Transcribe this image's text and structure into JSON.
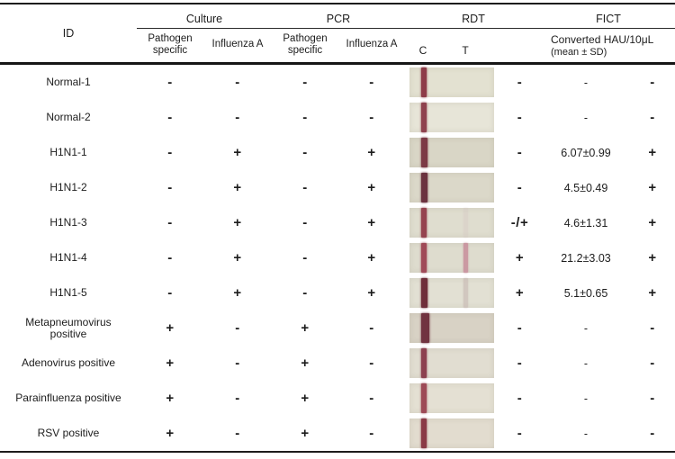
{
  "table": {
    "header": {
      "id_label": "ID",
      "groups": [
        {
          "label": "Culture"
        },
        {
          "label": "PCR"
        },
        {
          "label": "RDT"
        },
        {
          "label": "FICT"
        }
      ],
      "subheaders": {
        "culture_pathogen": "Pathogen specific",
        "culture_influenza": "Influenza A",
        "pcr_pathogen": "Pathogen specific",
        "pcr_influenza": "Influenza A",
        "rdt_c": "C",
        "rdt_t": "T",
        "fict_line1": "Converted HAU/10μL",
        "fict_line2": "(mean ± SD)"
      }
    },
    "rows": [
      {
        "id": "Normal-1",
        "culture_pathogen": "-",
        "culture_influenza_a": "-",
        "pcr_pathogen": "-",
        "pcr_influenza_a": "-",
        "rdt": "-",
        "fict_hau": "-",
        "fict": "-",
        "strip": {
          "bg": "#e3e1d1",
          "c": "#8e3c49",
          "c_width": 6,
          "t": null
        }
      },
      {
        "id": "Normal-2",
        "culture_pathogen": "-",
        "culture_influenza_a": "-",
        "pcr_pathogen": "-",
        "pcr_influenza_a": "-",
        "rdt": "-",
        "fict_hau": "-",
        "fict": "-",
        "strip": {
          "bg": "#e7e5d8",
          "c": "#8f424e",
          "c_width": 6,
          "t": null
        }
      },
      {
        "id": "H1N1-1",
        "culture_pathogen": "-",
        "culture_influenza_a": "+",
        "pcr_pathogen": "-",
        "pcr_influenza_a": "+",
        "rdt": "-",
        "fict_hau": "6.07±0.99",
        "fict": "+",
        "strip": {
          "bg": "#d9d6c6",
          "c": "#7c3945",
          "c_width": 7,
          "t": null
        }
      },
      {
        "id": "H1N1-2",
        "culture_pathogen": "-",
        "culture_influenza_a": "+",
        "pcr_pathogen": "-",
        "pcr_influenza_a": "+",
        "rdt": "-",
        "fict_hau": "4.5±0.49",
        "fict": "+",
        "strip": {
          "bg": "#dbd8c9",
          "c": "#6b323f",
          "c_width": 7,
          "t": null
        }
      },
      {
        "id": "H1N1-3",
        "culture_pathogen": "-",
        "culture_influenza_a": "+",
        "pcr_pathogen": "-",
        "pcr_influenza_a": "+",
        "rdt": "-/+",
        "fict_hau": "4.6±1.31",
        "fict": "+",
        "strip": {
          "bg": "#dfddcf",
          "c": "#95434f",
          "c_width": 6,
          "t": "#d4c6c2",
          "t_opacity": 0.35
        }
      },
      {
        "id": "H1N1-4",
        "culture_pathogen": "-",
        "culture_influenza_a": "+",
        "pcr_pathogen": "-",
        "pcr_influenza_a": "+",
        "rdt": "+",
        "fict_hau": "21.2±3.03",
        "fict": "+",
        "strip": {
          "bg": "#dedcce",
          "c": "#a04a58",
          "c_width": 6,
          "t": "#c9929e",
          "t_opacity": 0.9
        }
      },
      {
        "id": "H1N1-5",
        "culture_pathogen": "-",
        "culture_influenza_a": "+",
        "pcr_pathogen": "-",
        "pcr_influenza_a": "+",
        "rdt": "+",
        "fict_hau": "5.1±0.65",
        "fict": "+",
        "strip": {
          "bg": "#e2e0d3",
          "c": "#6f2e3a",
          "c_width": 7,
          "t": "#c4b4b0",
          "t_opacity": 0.55
        }
      },
      {
        "id": "Metapneumovirus\npositive",
        "culture_pathogen": "+",
        "culture_influenza_a": "-",
        "pcr_pathogen": "+",
        "pcr_influenza_a": "-",
        "rdt": "-",
        "fict_hau": "-",
        "fict": "-",
        "strip": {
          "bg": "#d8d2c5",
          "c": "#713340",
          "c_width": 9,
          "t": null
        }
      },
      {
        "id": "Adenovirus positive",
        "culture_pathogen": "+",
        "culture_influenza_a": "-",
        "pcr_pathogen": "+",
        "pcr_influenza_a": "-",
        "rdt": "-",
        "fict_hau": "-",
        "fict": "-",
        "strip": {
          "bg": "#e1ddd1",
          "c": "#8d4150",
          "c_width": 6,
          "t": null
        }
      },
      {
        "id": "Parainfluenza positive",
        "culture_pathogen": "+",
        "culture_influenza_a": "-",
        "pcr_pathogen": "+",
        "pcr_influenza_a": "-",
        "rdt": "-",
        "fict_hau": "-",
        "fict": "-",
        "strip": {
          "bg": "#e4e0d3",
          "c": "#9d4a56",
          "c_width": 6,
          "t": null
        }
      },
      {
        "id": "RSV positive",
        "culture_pathogen": "+",
        "culture_influenza_a": "-",
        "pcr_pathogen": "+",
        "pcr_influenza_a": "-",
        "rdt": "-",
        "fict_hau": "-",
        "fict": "-",
        "strip": {
          "bg": "#e2dccf",
          "c": "#8a3a46",
          "c_width": 6,
          "t": null
        }
      }
    ]
  }
}
